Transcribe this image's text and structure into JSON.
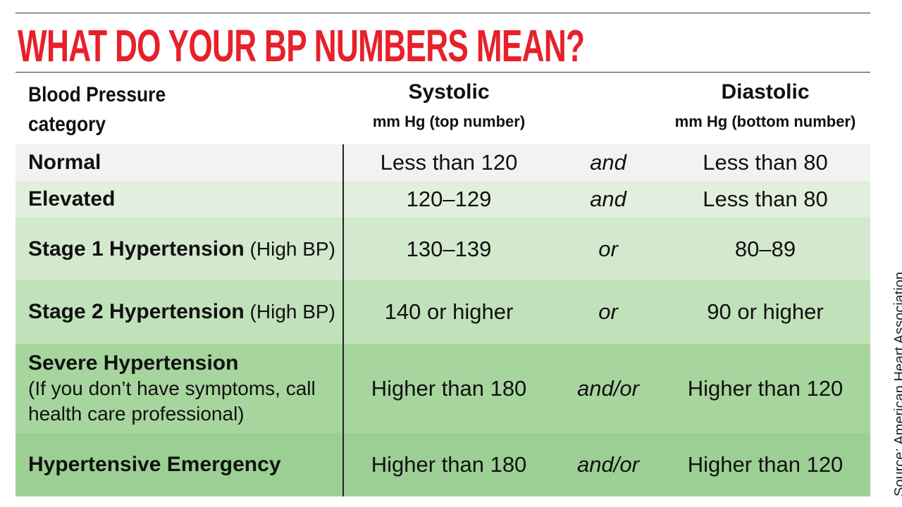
{
  "header": {
    "title": "WHAT DO YOUR BP NUMBERS MEAN?"
  },
  "table": {
    "columns": {
      "category": "Blood Pressure category",
      "systolic": "Systolic",
      "systolic_unit": "mm Hg (top number)",
      "diastolic": "Diastolic",
      "diastolic_unit": "mm Hg (bottom number)"
    },
    "rows": [
      {
        "name": "Normal",
        "systolic": "Less than 120",
        "connector": "and",
        "diastolic": "Less than 80"
      },
      {
        "name": "Elevated",
        "systolic": "120–129",
        "connector": "and",
        "diastolic": "Less than 80"
      },
      {
        "name": "Stage 1 Hypertension",
        "note": "(High BP)",
        "systolic": "130–139",
        "connector": "or",
        "diastolic": "80–89"
      },
      {
        "name": "Stage 2 Hypertension",
        "note": "(High BP)",
        "systolic": "140 or higher",
        "connector": "or",
        "diastolic": "90 or higher"
      },
      {
        "name": "Severe Hypertension",
        "note": "(If you don’t have symptoms, call health care professional)",
        "systolic": "Higher than 180",
        "connector": "and/or",
        "diastolic": "Higher than 120"
      },
      {
        "name": "Hypertensive Emergency",
        "systolic": "Higher than 180",
        "connector": "and/or",
        "diastolic": "Higher than 120"
      }
    ]
  },
  "source": "Source: American Heart Association"
}
